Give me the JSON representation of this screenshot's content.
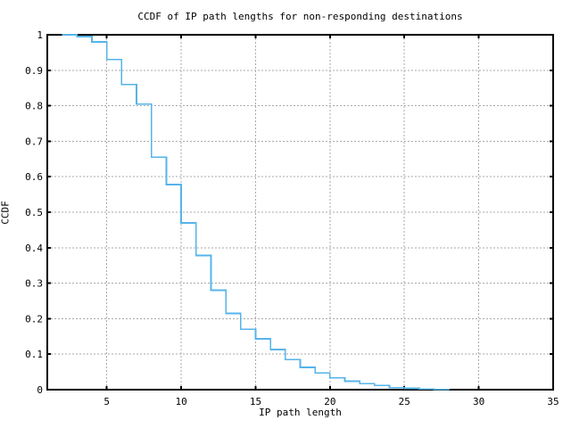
{
  "chart_data": {
    "type": "line",
    "subtype": "step-ccdf",
    "title": "CCDF of IP path lengths for non-responding destinations",
    "xlabel": "IP path length",
    "ylabel": "CCDF",
    "xlim": [
      1,
      35
    ],
    "ylim": [
      0,
      1
    ],
    "grid": "dashed",
    "legend": "none",
    "line_color": "#56b4e9",
    "grid_color": "#aaaaaa",
    "border_color": "#000000",
    "background_color": "#ffffff",
    "xticks": [
      {
        "v": 5,
        "label": "5"
      },
      {
        "v": 10,
        "label": "10"
      },
      {
        "v": 15,
        "label": "15"
      },
      {
        "v": 20,
        "label": "20"
      },
      {
        "v": 25,
        "label": "25"
      },
      {
        "v": 30,
        "label": "30"
      },
      {
        "v": 35,
        "label": "35"
      }
    ],
    "yticks": [
      {
        "v": 0,
        "label": "0"
      },
      {
        "v": 0.1,
        "label": "0.1"
      },
      {
        "v": 0.2,
        "label": "0.2"
      },
      {
        "v": 0.3,
        "label": "0.3"
      },
      {
        "v": 0.4,
        "label": "0.4"
      },
      {
        "v": 0.5,
        "label": "0.5"
      },
      {
        "v": 0.6,
        "label": "0.6"
      },
      {
        "v": 0.7,
        "label": "0.7"
      },
      {
        "v": 0.8,
        "label": "0.8"
      },
      {
        "v": 0.9,
        "label": "0.9"
      },
      {
        "v": 1,
        "label": "1"
      }
    ],
    "series": [
      {
        "name": "ccdf",
        "style": "steps",
        "points": [
          [
            2,
            1.0
          ],
          [
            3,
            0.995
          ],
          [
            4,
            0.98
          ],
          [
            5,
            0.93
          ],
          [
            6,
            0.86
          ],
          [
            7,
            0.805
          ],
          [
            8,
            0.655
          ],
          [
            9,
            0.578
          ],
          [
            10,
            0.47
          ],
          [
            11,
            0.378
          ],
          [
            12,
            0.28
          ],
          [
            13,
            0.215
          ],
          [
            14,
            0.17
          ],
          [
            15,
            0.143
          ],
          [
            16,
            0.113
          ],
          [
            17,
            0.085
          ],
          [
            18,
            0.063
          ],
          [
            19,
            0.047
          ],
          [
            20,
            0.033
          ],
          [
            21,
            0.024
          ],
          [
            22,
            0.017
          ],
          [
            23,
            0.012
          ],
          [
            24,
            0.006
          ],
          [
            25,
            0.004
          ],
          [
            26,
            0.002
          ],
          [
            27,
            0.001
          ]
        ],
        "end_x": 28,
        "end_y": 0
      }
    ]
  }
}
